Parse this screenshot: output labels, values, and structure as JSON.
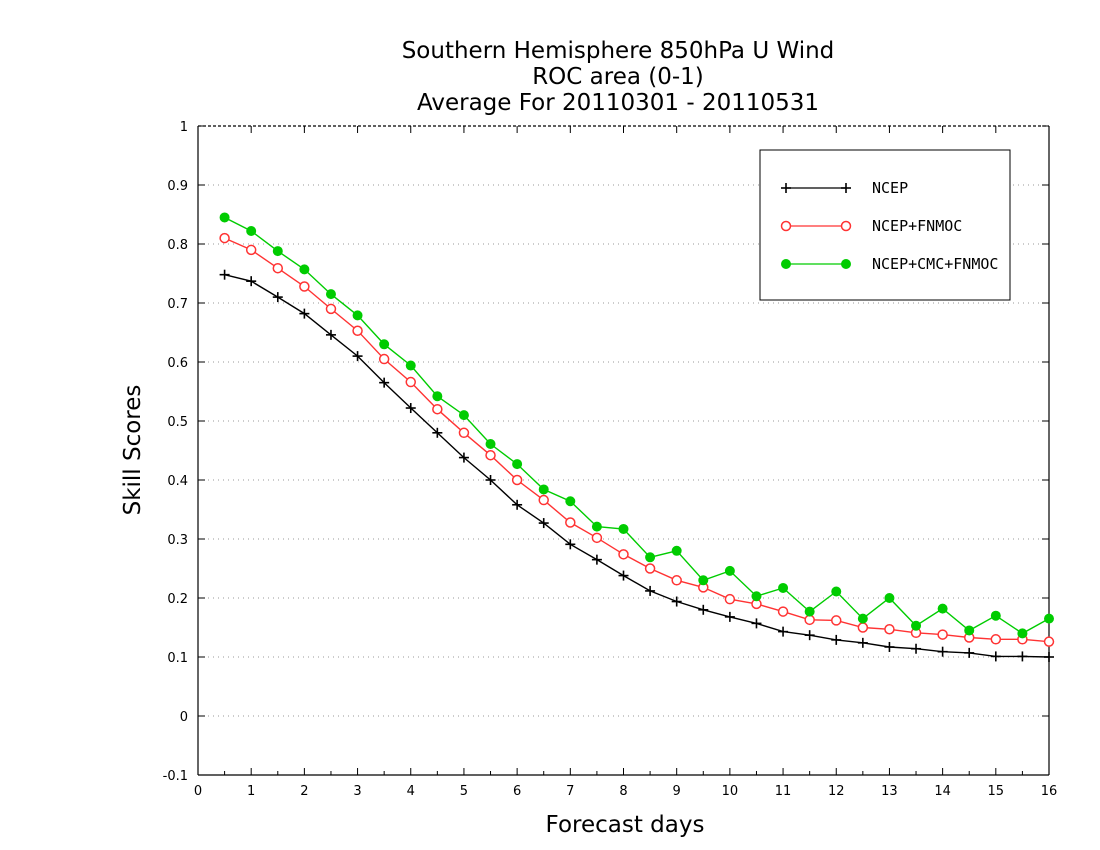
{
  "chart_data": {
    "type": "line",
    "title": [
      "Southern Hemisphere 850hPa U Wind",
      "ROC area (0-1)",
      "Average For 20110301 - 20110531"
    ],
    "xlabel": "Forecast days",
    "ylabel": "Skill Scores",
    "xlim": [
      0,
      16
    ],
    "ylim": [
      -0.1,
      1
    ],
    "xticks": [
      0,
      1,
      2,
      3,
      4,
      5,
      6,
      7,
      8,
      9,
      10,
      11,
      12,
      13,
      14,
      15,
      16
    ],
    "xtick_labels": [
      "0",
      "1",
      "2",
      "3",
      "4",
      "5",
      "6",
      "7",
      "8",
      "9",
      "10",
      "11",
      "12",
      "13",
      "14",
      "15",
      "16"
    ],
    "yticks": [
      -0.1,
      0,
      0.1,
      0.2,
      0.3,
      0.4,
      0.5,
      0.6,
      0.7,
      0.8,
      0.9,
      1
    ],
    "ytick_labels": [
      "-0.1",
      "0",
      "0.1",
      "0.2",
      "0.3",
      "0.4",
      "0.5",
      "0.6",
      "0.7",
      "0.8",
      "0.9",
      "1"
    ],
    "grid": "horizontal dotted",
    "legend_position": "top-right",
    "x": [
      0.5,
      1,
      1.5,
      2,
      2.5,
      3,
      3.5,
      4,
      4.5,
      5,
      5.5,
      6,
      6.5,
      7,
      7.5,
      8,
      8.5,
      9,
      9.5,
      10,
      10.5,
      11,
      11.5,
      12,
      12.5,
      13,
      13.5,
      14,
      14.5,
      15,
      15.5,
      16
    ],
    "series": [
      {
        "name": "NCEP",
        "color": "#000000",
        "marker": "plus",
        "values": [
          0.748,
          0.737,
          0.71,
          0.682,
          0.646,
          0.61,
          0.565,
          0.522,
          0.48,
          0.438,
          0.4,
          0.358,
          0.327,
          0.291,
          0.265,
          0.238,
          0.212,
          0.194,
          0.18,
          0.168,
          0.157,
          0.143,
          0.137,
          0.129,
          0.124,
          0.117,
          0.114,
          0.109,
          0.107,
          0.101,
          0.101,
          0.1
        ]
      },
      {
        "name": "NCEP+FNMOC",
        "color": "#ff3333",
        "marker": "open-circle",
        "values": [
          0.81,
          0.79,
          0.759,
          0.728,
          0.69,
          0.653,
          0.605,
          0.566,
          0.52,
          0.48,
          0.442,
          0.4,
          0.366,
          0.328,
          0.302,
          0.274,
          0.25,
          0.23,
          0.218,
          0.198,
          0.19,
          0.177,
          0.163,
          0.162,
          0.15,
          0.147,
          0.141,
          0.138,
          0.133,
          0.13,
          0.13,
          0.126
        ]
      },
      {
        "name": "NCEP+CMC+FNMOC",
        "color": "#00cc00",
        "marker": "filled-circle",
        "values": [
          0.845,
          0.822,
          0.788,
          0.757,
          0.715,
          0.679,
          0.63,
          0.594,
          0.542,
          0.51,
          0.461,
          0.427,
          0.384,
          0.364,
          0.321,
          0.317,
          0.269,
          0.28,
          0.23,
          0.246,
          0.203,
          0.217,
          0.177,
          0.211,
          0.165,
          0.2,
          0.153,
          0.182,
          0.145,
          0.17,
          0.14,
          0.165
        ]
      }
    ]
  }
}
